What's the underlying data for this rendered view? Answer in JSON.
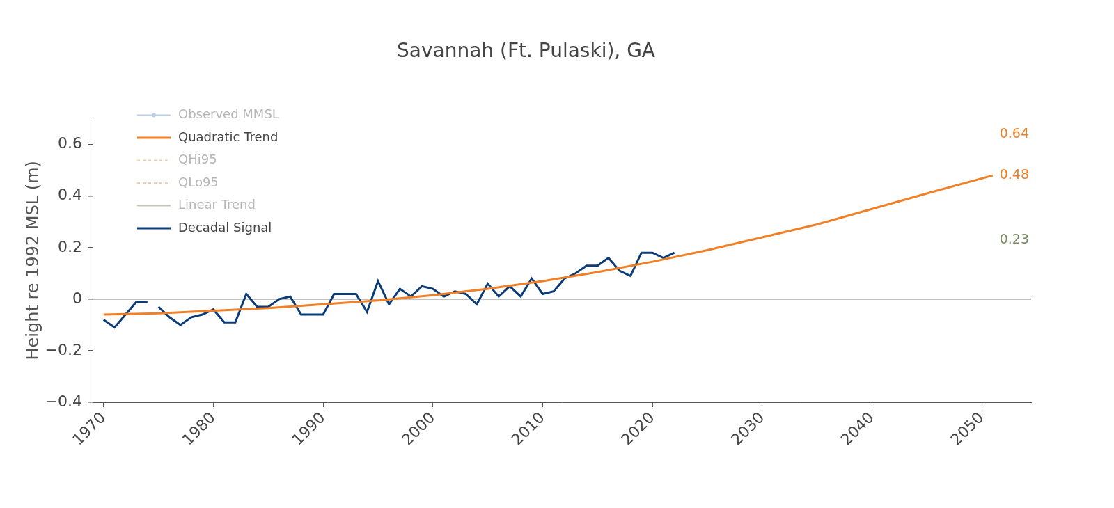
{
  "chart_data": {
    "type": "line",
    "title": "Savannah (Ft. Pulaski), GA",
    "y_label": "Height re 1992 MSL (m)",
    "xlim": [
      1969,
      2054.5
    ],
    "xticks": [
      1970,
      1980,
      1990,
      2000,
      2010,
      2020,
      2030,
      2040,
      2050
    ],
    "ylim": [
      -0.4,
      0.7
    ],
    "yticks": [
      {
        "value": -0.4,
        "label": "−0.4"
      },
      {
        "value": -0.2,
        "label": "−0.2"
      },
      0,
      0.2,
      0.4,
      0.6
    ],
    "grid": false,
    "legend": "top-left",
    "series": [
      {
        "name": "Observed MMSL",
        "color": "#b9cfe6",
        "marker": "circle",
        "line_style": "solid",
        "x": [],
        "values": []
      },
      {
        "name": "Quadratic Trend",
        "color": "#f07f26",
        "line_style": "solid",
        "x": [
          1970,
          1975,
          1980,
          1985,
          1990,
          1995,
          2000,
          2005,
          2010,
          2015,
          2020,
          2025,
          2030,
          2035,
          2040,
          2045,
          2051
        ],
        "values": [
          -0.06,
          -0.055,
          -0.045,
          -0.035,
          -0.02,
          -0.005,
          0.015,
          0.04,
          0.07,
          0.105,
          0.145,
          0.19,
          0.24,
          0.29,
          0.35,
          0.41,
          0.48
        ]
      },
      {
        "name": "QHi95",
        "color": "#f7c9a6",
        "line_style": "dashed",
        "x": [],
        "values": []
      },
      {
        "name": "QLo95",
        "color": "#f7c9a6",
        "line_style": "dashed",
        "x": [],
        "values": []
      },
      {
        "name": "Linear Trend",
        "color": "#c4c7b8",
        "line_style": "solid",
        "x": [],
        "values": []
      },
      {
        "name": "Decadal Signal",
        "color": "#0c3c78",
        "line_style": "solid",
        "x": [
          1970,
          1971,
          1972,
          1973,
          1974,
          1974.5,
          1975,
          1976,
          1977,
          1978,
          1979,
          1980,
          1981,
          1982,
          1983,
          1984,
          1985,
          1986,
          1987,
          1988,
          1989,
          1990,
          1991,
          1992,
          1993,
          1994,
          1995,
          1996,
          1997,
          1998,
          1999,
          2000,
          2001,
          2002,
          2003,
          2004,
          2005,
          2006,
          2007,
          2008,
          2009,
          2010,
          2011,
          2012,
          2013,
          2014,
          2015,
          2016,
          2017,
          2018,
          2019,
          2020,
          2021,
          2022
        ],
        "values": [
          -0.08,
          -0.11,
          -0.06,
          -0.01,
          -0.01,
          null,
          -0.03,
          -0.07,
          -0.1,
          -0.07,
          -0.06,
          -0.04,
          -0.09,
          -0.09,
          0.02,
          -0.03,
          -0.03,
          0.0,
          0.01,
          -0.06,
          -0.06,
          -0.06,
          0.02,
          0.02,
          0.02,
          -0.05,
          0.07,
          -0.02,
          0.04,
          0.01,
          0.05,
          0.04,
          0.01,
          0.03,
          0.02,
          -0.02,
          0.06,
          0.01,
          0.05,
          0.01,
          0.08,
          0.02,
          0.03,
          0.08,
          0.1,
          0.13,
          0.13,
          0.16,
          0.11,
          0.09,
          0.18,
          0.18,
          0.16,
          0.18
        ]
      }
    ],
    "annotations": [
      {
        "text": "0.64",
        "value": 0.64,
        "color": "#f07f26"
      },
      {
        "text": "0.48",
        "value": 0.48,
        "color": "#f07f26"
      },
      {
        "text": "0.23",
        "value": 0.23,
        "color": "#7a8a62"
      }
    ]
  }
}
